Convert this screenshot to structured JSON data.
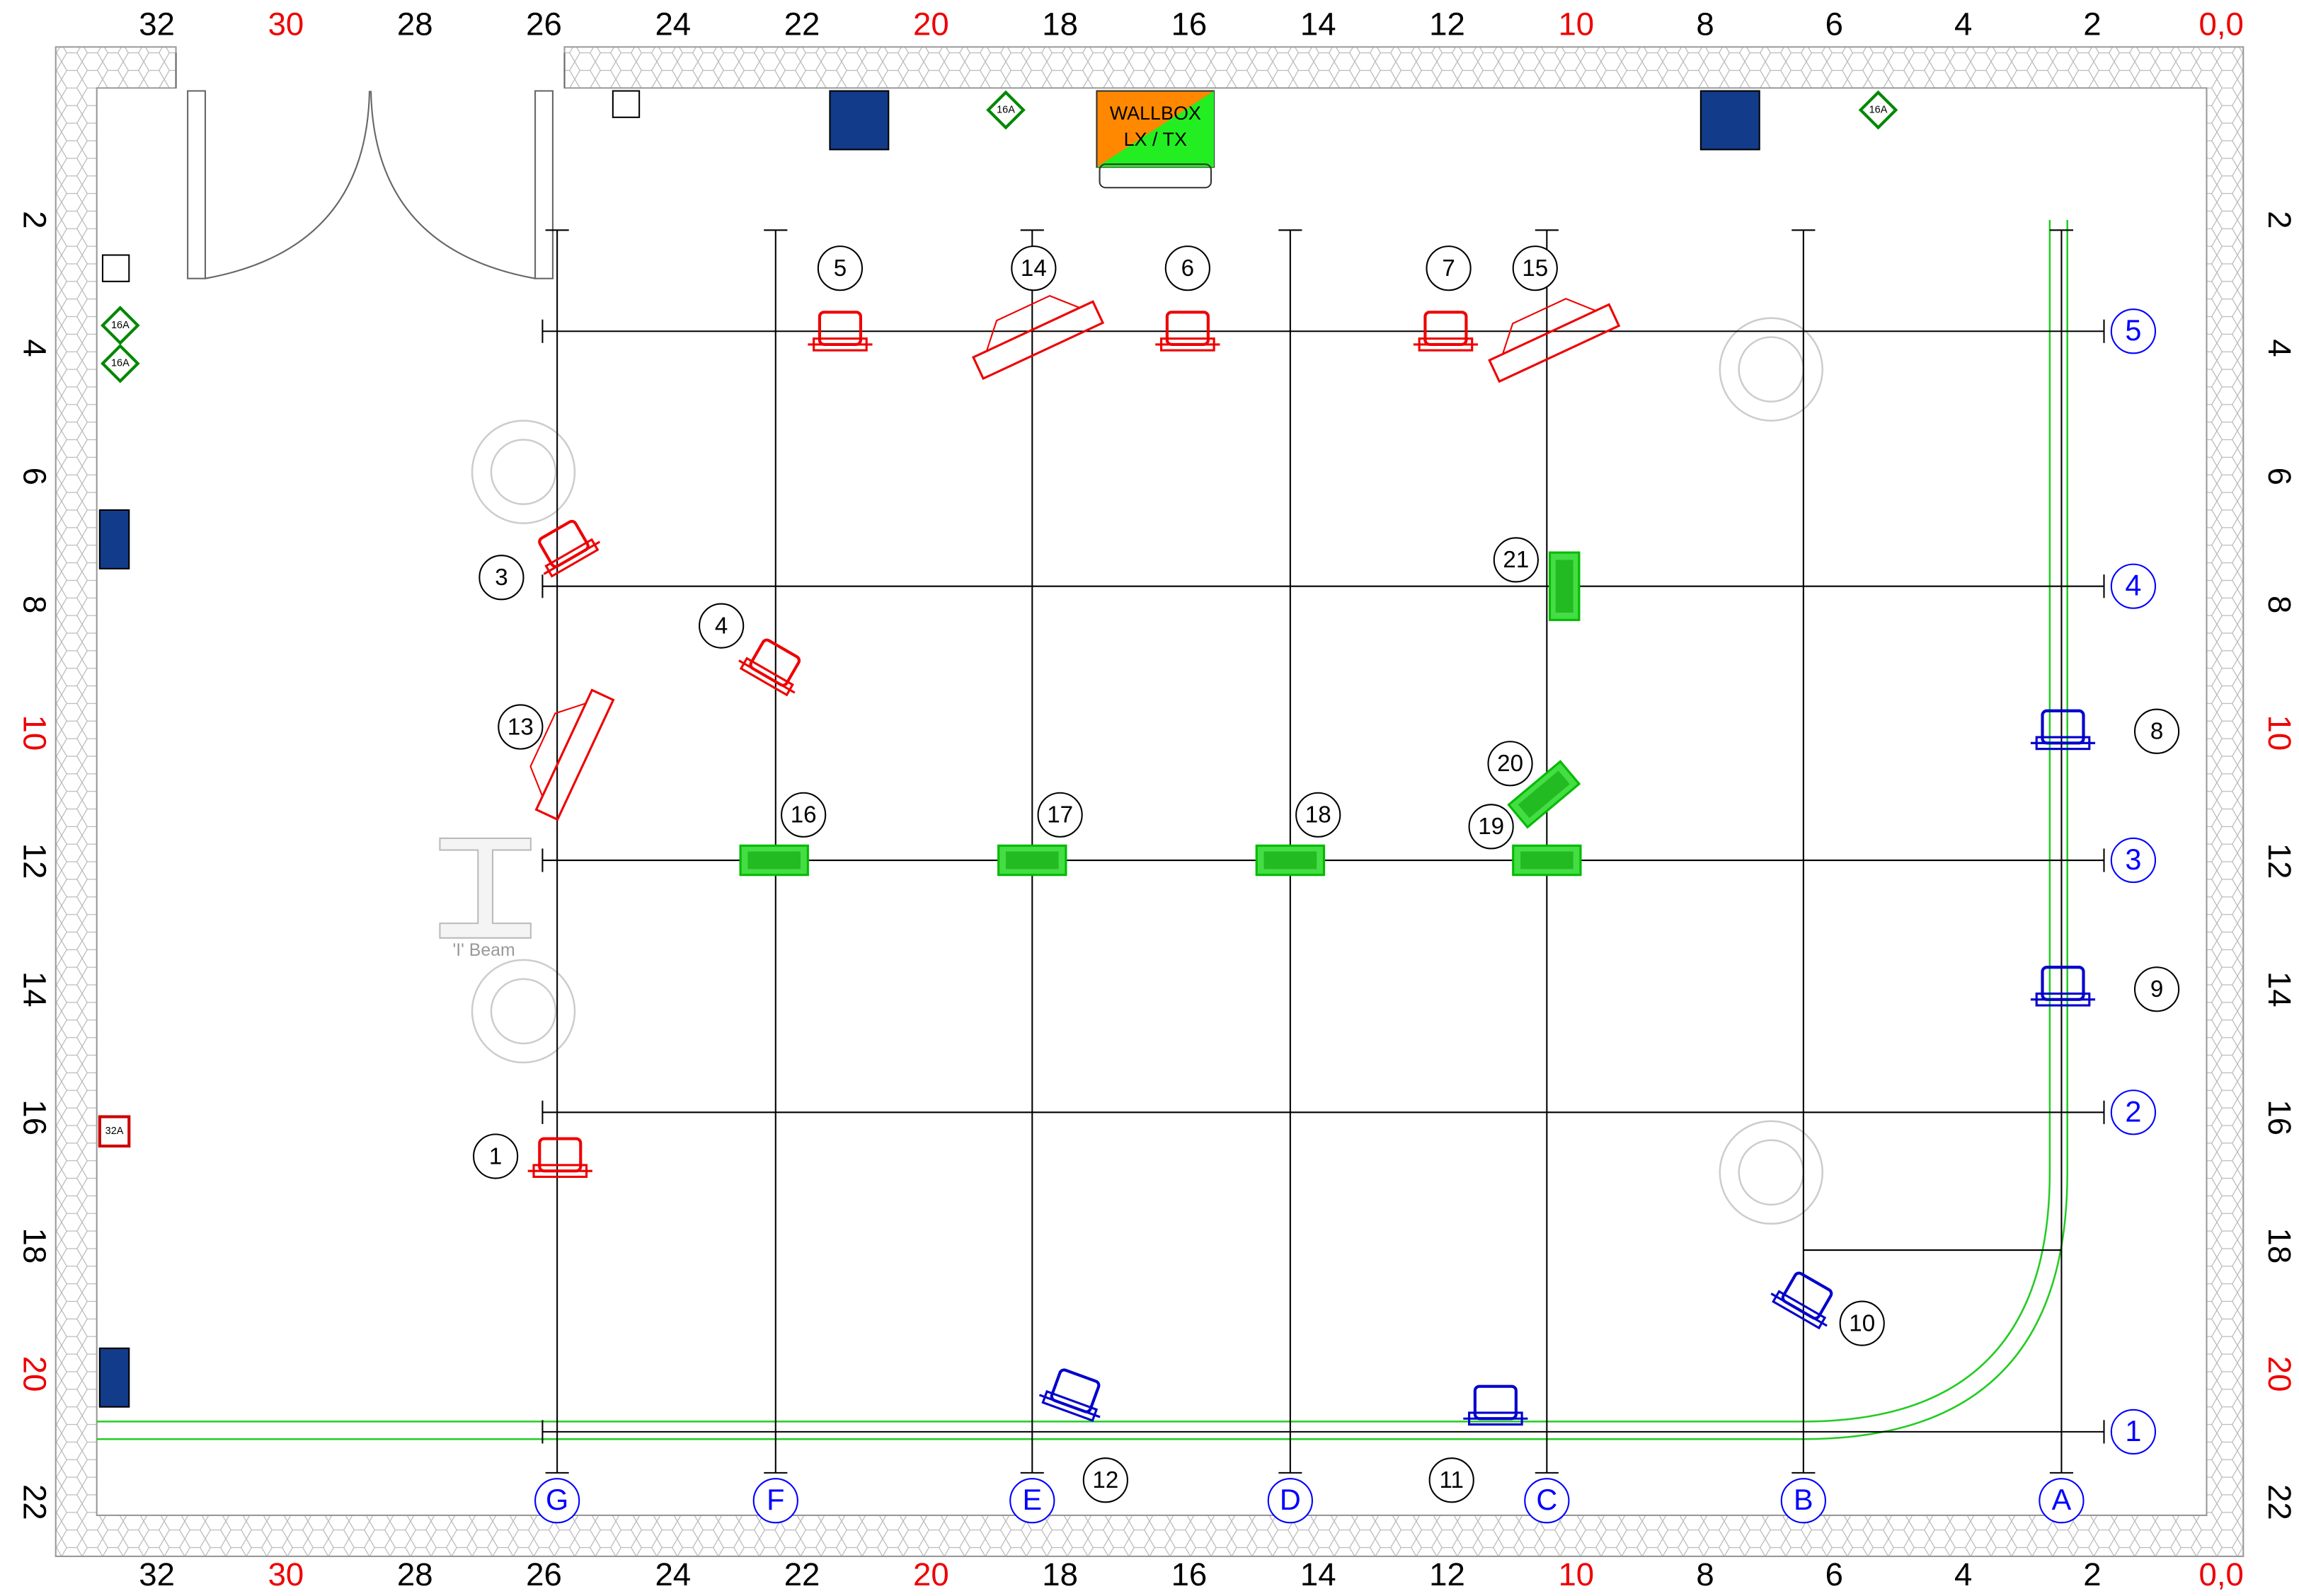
{
  "ruler": {
    "top": [
      "32",
      "30",
      "28",
      "26",
      "24",
      "22",
      "20",
      "18",
      "16",
      "14",
      "12",
      "10",
      "8",
      "6",
      "4",
      "2",
      "0,0"
    ],
    "bottom": [
      "32",
      "30",
      "28",
      "26",
      "24",
      "22",
      "20",
      "18",
      "16",
      "14",
      "12",
      "10",
      "8",
      "6",
      "4",
      "2",
      "0,0"
    ],
    "left": [
      "2",
      "4",
      "6",
      "8",
      "10",
      "12",
      "14",
      "16",
      "18",
      "20",
      "22"
    ],
    "right": [
      "2",
      "4",
      "6",
      "8",
      "10",
      "12",
      "14",
      "16",
      "18",
      "20",
      "22"
    ]
  },
  "grid": {
    "columns": [
      "G",
      "F",
      "E",
      "D",
      "C",
      "B",
      "A"
    ],
    "rows": [
      "5",
      "4",
      "3",
      "2",
      "1"
    ]
  },
  "fixtures": [
    "1",
    "3",
    "4",
    "5",
    "6",
    "7",
    "8",
    "9",
    "10",
    "11",
    "12",
    "13",
    "14",
    "15",
    "16",
    "17",
    "18",
    "19",
    "20",
    "21"
  ],
  "wallbox": {
    "line1": "WALLBOX",
    "line2": "LX / TX"
  },
  "beam_label": "'I' Beam",
  "power": [
    "16A",
    "16A",
    "16A",
    "16A",
    "32A"
  ]
}
